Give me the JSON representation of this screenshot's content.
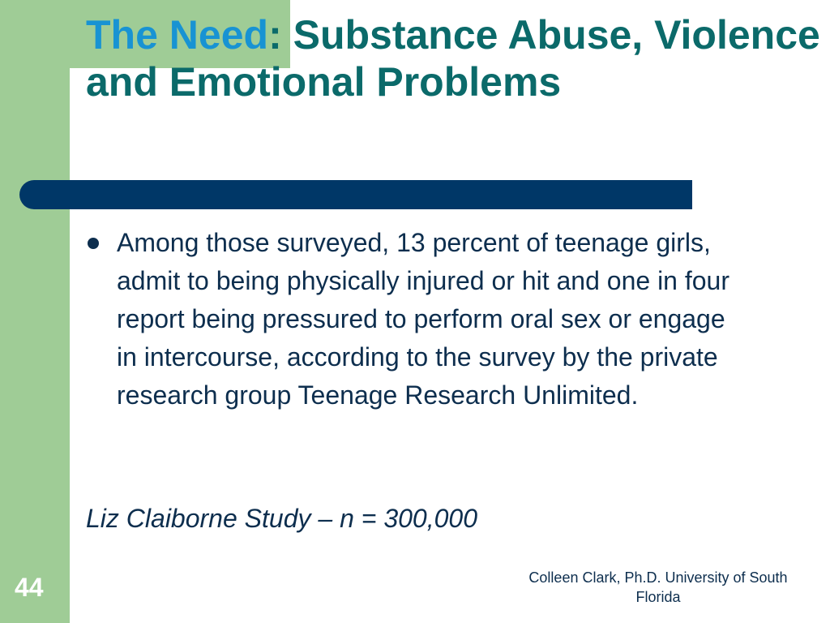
{
  "slide": {
    "title_accent": "The Need",
    "title_colon": ":",
    "title_main": " Substance Abuse, Violence and Emotional Problems",
    "bullet_text": "Among those surveyed, 13 percent of teenage girls, admit to being physically injured or hit and one in four report being pressured to perform oral sex or engage in intercourse, according to the survey by the private research group Teenage Research Unlimited.",
    "source_line": "Liz Claiborne Study – n = 300,000",
    "slide_number": "44",
    "footer": "Colleen Clark, Ph.D. University of South Florida"
  },
  "colors": {
    "green": "#9fcc96",
    "title_teal": "#0b6a6a",
    "title_blue": "#1893d3",
    "rule_navy": "#003767",
    "body_text": "#0d2e4e"
  }
}
